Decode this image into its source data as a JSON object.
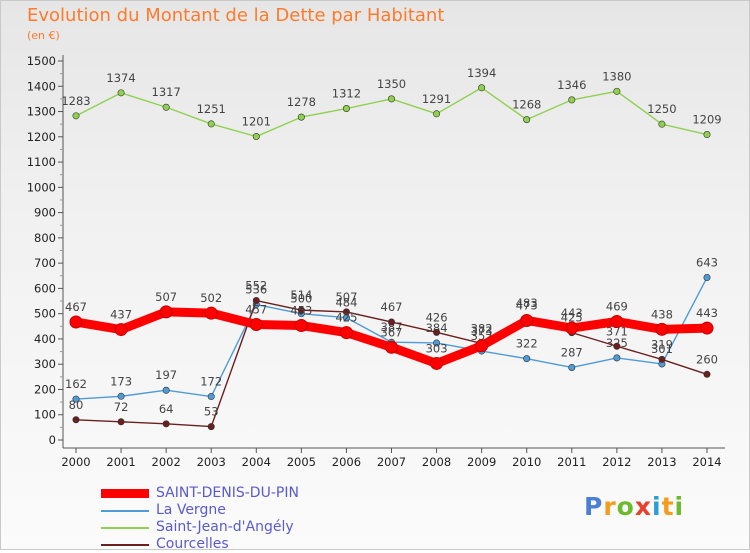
{
  "title": "Evolution du Montant de la Dette par Habitant",
  "unit_label": "(en €)",
  "logo_text": "Proxiti",
  "chart_data": {
    "type": "line",
    "title": "Evolution du Montant de la Dette par Habitant",
    "ylabel": "(en €)",
    "xlabel": "",
    "ylim": [
      0,
      1500
    ],
    "yticks": [
      0,
      100,
      200,
      300,
      400,
      500,
      600,
      700,
      800,
      900,
      1000,
      1100,
      1200,
      1300,
      1400,
      1500
    ],
    "x": [
      "2000",
      "2001",
      "2002",
      "2003",
      "2004",
      "2005",
      "2006",
      "2007",
      "2008",
      "2009",
      "2010",
      "2011",
      "2012",
      "2013",
      "2014"
    ],
    "grid": false,
    "legend_position": "bottom-left",
    "series": [
      {
        "name": "Saint-Jean-d'Angély",
        "color": "#8fd14f",
        "values": [
          1283,
          1374,
          1317,
          1251,
          1201,
          1278,
          1312,
          1350,
          1291,
          1394,
          1268,
          1346,
          1380,
          1250,
          1209
        ]
      },
      {
        "name": "La Vergne",
        "color": "#4f9bd6",
        "values": [
          162,
          173,
          197,
          172,
          536,
          500,
          484,
          387,
          384,
          352,
          322,
          287,
          325,
          301,
          643
        ]
      },
      {
        "name": "Courcelles",
        "color": "#6b1f1f",
        "values": [
          80,
          72,
          64,
          53,
          552,
          514,
          507,
          467,
          426,
          382,
          483,
          425,
          371,
          319,
          260
        ]
      },
      {
        "name": "SAINT-DENIS-DU-PIN",
        "color": "#ff0000",
        "values": [
          467,
          437,
          507,
          502,
          457,
          453,
          425,
          367,
          303,
          373,
          473,
          443,
          469,
          438,
          443
        ]
      }
    ]
  }
}
